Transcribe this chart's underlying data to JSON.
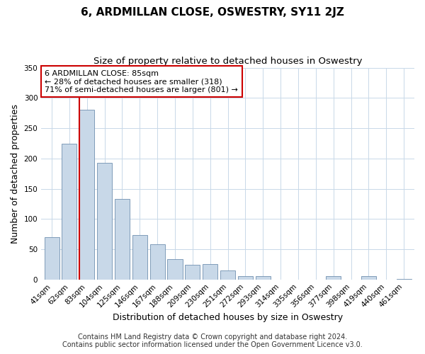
{
  "title": "6, ARDMILLAN CLOSE, OSWESTRY, SY11 2JZ",
  "subtitle": "Size of property relative to detached houses in Oswestry",
  "xlabel": "Distribution of detached houses by size in Oswestry",
  "ylabel": "Number of detached properties",
  "bar_labels": [
    "41sqm",
    "62sqm",
    "83sqm",
    "104sqm",
    "125sqm",
    "146sqm",
    "167sqm",
    "188sqm",
    "209sqm",
    "230sqm",
    "251sqm",
    "272sqm",
    "293sqm",
    "314sqm",
    "335sqm",
    "356sqm",
    "377sqm",
    "398sqm",
    "419sqm",
    "440sqm",
    "461sqm"
  ],
  "bar_values": [
    70,
    224,
    280,
    193,
    133,
    73,
    58,
    34,
    24,
    25,
    15,
    5,
    6,
    0,
    0,
    0,
    6,
    0,
    6,
    0,
    1
  ],
  "bar_color": "#c8d8e8",
  "bar_edge_color": "#7090b0",
  "highlight_bar_index": 2,
  "highlight_line_color": "#cc0000",
  "annotation_text": "6 ARDMILLAN CLOSE: 85sqm\n← 28% of detached houses are smaller (318)\n71% of semi-detached houses are larger (801) →",
  "annotation_box_color": "#ffffff",
  "annotation_box_edge": "#cc0000",
  "ylim": [
    0,
    350
  ],
  "yticks": [
    0,
    50,
    100,
    150,
    200,
    250,
    300,
    350
  ],
  "footer_line1": "Contains HM Land Registry data © Crown copyright and database right 2024.",
  "footer_line2": "Contains public sector information licensed under the Open Government Licence v3.0.",
  "title_fontsize": 11,
  "subtitle_fontsize": 9.5,
  "axis_label_fontsize": 9,
  "tick_fontsize": 7.5,
  "annotation_fontsize": 8,
  "footer_fontsize": 7,
  "background_color": "#ffffff",
  "grid_color": "#c8d8e8"
}
